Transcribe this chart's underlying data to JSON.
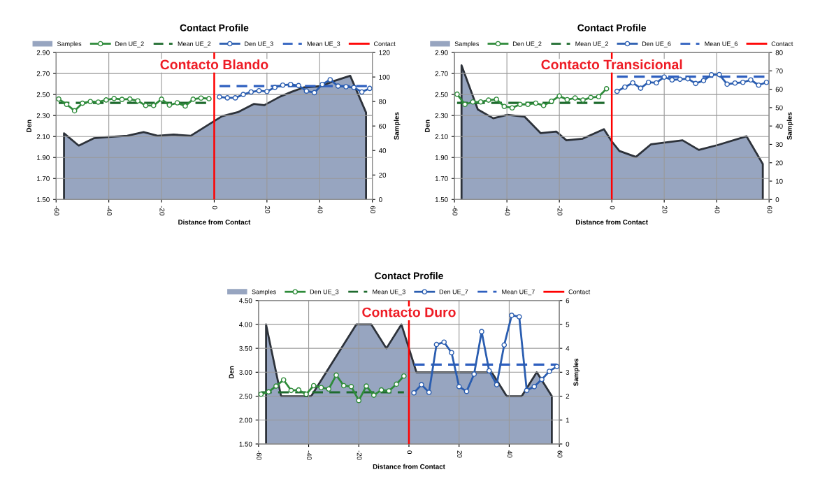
{
  "chart_data": [
    {
      "type": "line",
      "title": "Contact Profile",
      "xlabel": "Distance from Contact",
      "ylabel": "Den",
      "y2label": "Samples",
      "annotations": [
        "Contacto Blando"
      ],
      "xlim": [
        -60,
        60
      ],
      "xticks": [
        -60,
        -40,
        -20,
        0,
        20,
        40,
        60
      ],
      "ylim": [
        1.5,
        2.9
      ],
      "yticks": [
        {
          "value": 1.5,
          "label": "1.50"
        },
        {
          "value": 1.7,
          "label": "1.70"
        },
        {
          "value": 1.9,
          "label": "1.90"
        },
        {
          "value": 2.1,
          "label": "2.10"
        },
        {
          "value": 2.3,
          "label": "2.30"
        },
        {
          "value": 2.5,
          "label": "2.50"
        },
        {
          "value": 2.7,
          "label": "2.70"
        },
        {
          "value": 2.9,
          "label": "2.90"
        }
      ],
      "y2lim": [
        0,
        120
      ],
      "y2ticks": [
        0,
        20,
        40,
        60,
        80,
        100,
        120
      ],
      "grid": true,
      "legend": "top",
      "ref_lines": [
        {
          "axis": "x",
          "value": 0,
          "label": "Contact",
          "color": "#ff0000"
        }
      ],
      "series": [
        {
          "name": "Samples",
          "type": "area",
          "axis": "y2",
          "color": "#97a5c0",
          "x": [
            -57,
            -51.4,
            -45.7,
            -40,
            -33,
            -26.8,
            -21.5,
            -15.4,
            -8.9,
            0,
            3,
            9.2,
            15,
            19,
            25,
            29.5,
            34,
            40.5,
            45.4,
            51.6,
            57.6
          ],
          "values": [
            54,
            44,
            50,
            51,
            52,
            55,
            52,
            53,
            52,
            64,
            68,
            71.5,
            78,
            77,
            84,
            88,
            91.5,
            92.5,
            96.7,
            101,
            71
          ]
        },
        {
          "name": "Den UE_2",
          "color": "#2e8b3a",
          "marker": "circle",
          "x": [
            -59,
            -56,
            -53,
            -50,
            -47,
            -44,
            -41,
            -38,
            -35,
            -32,
            -29,
            -26,
            -23,
            -20,
            -17,
            -14,
            -11,
            -8,
            -5,
            -2
          ],
          "values": [
            2.457,
            2.406,
            2.345,
            2.417,
            2.433,
            2.428,
            2.448,
            2.462,
            2.453,
            2.457,
            2.439,
            2.395,
            2.395,
            2.455,
            2.399,
            2.421,
            2.39,
            2.455,
            2.466,
            2.46
          ]
        },
        {
          "name": "Mean UE_2",
          "color": "#1e6b2e",
          "line_style": "dashed",
          "x": [
            -59,
            -2
          ],
          "values": [
            2.42,
            2.42
          ]
        },
        {
          "name": "Den UE_3",
          "color": "#2a5db0",
          "marker": "circle",
          "x": [
            2,
            5,
            8,
            11,
            14,
            17,
            20,
            23,
            26,
            29,
            32,
            35,
            38,
            41,
            44,
            47,
            50,
            53,
            56,
            59
          ],
          "values": [
            2.477,
            2.468,
            2.468,
            2.5,
            2.524,
            2.536,
            2.529,
            2.567,
            2.589,
            2.596,
            2.585,
            2.533,
            2.518,
            2.596,
            2.641,
            2.58,
            2.574,
            2.567,
            2.524,
            2.558
          ]
        },
        {
          "name": "Mean UE_3",
          "color": "#2e5fbf",
          "line_style": "dashed",
          "x": [
            2,
            59
          ],
          "values": [
            2.58,
            2.58
          ]
        }
      ]
    },
    {
      "type": "line",
      "title": "Contact Profile",
      "xlabel": "Distance from Contact",
      "ylabel": "Den",
      "y2label": "Samples",
      "annotations": [
        "Contacto Transicional"
      ],
      "xlim": [
        -60,
        60
      ],
      "xticks": [
        -60,
        -40,
        -20,
        0,
        20,
        40,
        60
      ],
      "ylim": [
        1.5,
        2.9
      ],
      "yticks": [
        {
          "value": 1.5,
          "label": "1.50"
        },
        {
          "value": 1.7,
          "label": "1.70"
        },
        {
          "value": 1.9,
          "label": "1.90"
        },
        {
          "value": 2.1,
          "label": "2.10"
        },
        {
          "value": 2.3,
          "label": "2.30"
        },
        {
          "value": 2.5,
          "label": "2.50"
        },
        {
          "value": 2.7,
          "label": "2.70"
        },
        {
          "value": 2.9,
          "label": "2.90"
        }
      ],
      "y2lim": [
        0,
        80
      ],
      "y2ticks": [
        0,
        10,
        20,
        30,
        40,
        50,
        60,
        70,
        80
      ],
      "grid": true,
      "legend": "top",
      "ref_lines": [
        {
          "axis": "x",
          "value": 0,
          "label": "Contact",
          "color": "#ff0000"
        }
      ],
      "series": [
        {
          "name": "Samples",
          "type": "area",
          "axis": "y2",
          "color": "#97a5c0",
          "x": [
            -57.3,
            -51.1,
            -45.2,
            -39.8,
            -33.3,
            -27.1,
            -21.2,
            -17.3,
            -11.1,
            -3,
            0,
            2.9,
            9.2,
            14.9,
            27,
            33.2,
            40.3,
            51.4,
            57.6
          ],
          "values": [
            73,
            49,
            44.2,
            46.1,
            45.1,
            36.1,
            37,
            32.2,
            33.1,
            38.3,
            31.6,
            26.4,
            23.2,
            30,
            32.2,
            27,
            29.6,
            34.4,
            19.3
          ]
        },
        {
          "name": "Den UE_2",
          "color": "#2e8b3a",
          "marker": "circle",
          "x": [
            -59,
            -56,
            -53,
            -50,
            -47,
            -44,
            -41,
            -38,
            -35,
            -32,
            -29,
            -26,
            -23,
            -20,
            -17,
            -14,
            -11,
            -8,
            -5,
            -2
          ],
          "values": [
            2.503,
            2.406,
            2.429,
            2.429,
            2.447,
            2.454,
            2.386,
            2.373,
            2.406,
            2.406,
            2.418,
            2.395,
            2.436,
            2.485,
            2.451,
            2.467,
            2.447,
            2.472,
            2.479,
            2.555
          ]
        },
        {
          "name": "Mean UE_2",
          "color": "#1e6b2e",
          "line_style": "dashed",
          "x": [
            -59,
            -2
          ],
          "values": [
            2.42,
            2.42
          ]
        },
        {
          "name": "Den UE_6",
          "color": "#2a5db0",
          "marker": "circle",
          "x": [
            2,
            5,
            8,
            11,
            14,
            17,
            20,
            23,
            26,
            29,
            32,
            35,
            38,
            41,
            44,
            47,
            50,
            53,
            56,
            59
          ],
          "values": [
            2.53,
            2.571,
            2.611,
            2.56,
            2.616,
            2.611,
            2.666,
            2.639,
            2.645,
            2.65,
            2.605,
            2.632,
            2.688,
            2.69,
            2.598,
            2.609,
            2.616,
            2.639,
            2.589,
            2.616
          ]
        },
        {
          "name": "Mean UE_6",
          "color": "#2e5fbf",
          "line_style": "dashed",
          "x": [
            2,
            59
          ],
          "values": [
            2.67,
            2.67
          ]
        }
      ]
    },
    {
      "type": "line",
      "title": "Contact Profile",
      "xlabel": "Distance from Contact",
      "ylabel": "Den",
      "y2label": "Samples",
      "annotations": [
        "Contacto Duro"
      ],
      "xlim": [
        -60,
        60
      ],
      "xticks": [
        -60,
        -40,
        -20,
        0,
        20,
        40,
        60
      ],
      "ylim": [
        1.5,
        4.5
      ],
      "yticks": [
        {
          "value": 1.5,
          "label": "1.50"
        },
        {
          "value": 2,
          "label": "2.00"
        },
        {
          "value": 2.5,
          "label": "2.50"
        },
        {
          "value": 3,
          "label": "3.00"
        },
        {
          "value": 3.5,
          "label": "3.50"
        },
        {
          "value": 4,
          "label": "4.00"
        },
        {
          "value": 4.5,
          "label": "4.50"
        }
      ],
      "y2lim": [
        0,
        6
      ],
      "y2ticks": [
        0,
        1,
        2,
        3,
        4,
        5,
        6
      ],
      "grid": true,
      "legend": "top",
      "ref_lines": [
        {
          "axis": "x",
          "value": 0,
          "label": "Contact",
          "color": "#ff0000"
        }
      ],
      "series": [
        {
          "name": "Samples",
          "type": "area",
          "axis": "y2",
          "color": "#97a5c0",
          "x": [
            -57,
            -51,
            -39,
            -21,
            -15,
            -9,
            -3,
            3,
            33,
            39,
            45,
            51,
            57
          ],
          "values": [
            5,
            2,
            2,
            5,
            5,
            4,
            5,
            3,
            3,
            2,
            2,
            3,
            2
          ]
        },
        {
          "name": "Den UE_3",
          "color": "#2e8b3a",
          "marker": "circle",
          "x": [
            -59,
            -56,
            -53,
            -50,
            -47,
            -44,
            -41,
            -38,
            -35,
            -32,
            -29,
            -26,
            -23,
            -20,
            -17,
            -14,
            -11,
            -8,
            -5,
            -2
          ],
          "values": [
            2.54,
            2.59,
            2.71,
            2.84,
            2.62,
            2.63,
            2.54,
            2.72,
            2.68,
            2.65,
            2.94,
            2.72,
            2.7,
            2.41,
            2.71,
            2.52,
            2.63,
            2.61,
            2.75,
            2.92
          ]
        },
        {
          "name": "Mean UE_3",
          "color": "#1e6b2e",
          "line_style": "dashed",
          "x": [
            -59,
            -2
          ],
          "values": [
            2.58,
            2.58
          ]
        },
        {
          "name": "Den UE_7",
          "color": "#2a5db0",
          "marker": "circle",
          "x": [
            2,
            5,
            8,
            11,
            14,
            17,
            20,
            23,
            26,
            29,
            32,
            35,
            38,
            41,
            44,
            47,
            50,
            53,
            56,
            59
          ],
          "values": [
            2.57,
            2.74,
            2.58,
            3.58,
            3.63,
            3.41,
            2.7,
            2.6,
            2.96,
            3.85,
            3.03,
            2.74,
            3.57,
            4.19,
            4.16,
            2.62,
            2.7,
            2.85,
            3.02,
            3.12
          ]
        },
        {
          "name": "Mean UE_7",
          "color": "#2e5fbf",
          "line_style": "dashed",
          "x": [
            2,
            59
          ],
          "values": [
            3.16,
            3.16
          ]
        }
      ]
    }
  ]
}
